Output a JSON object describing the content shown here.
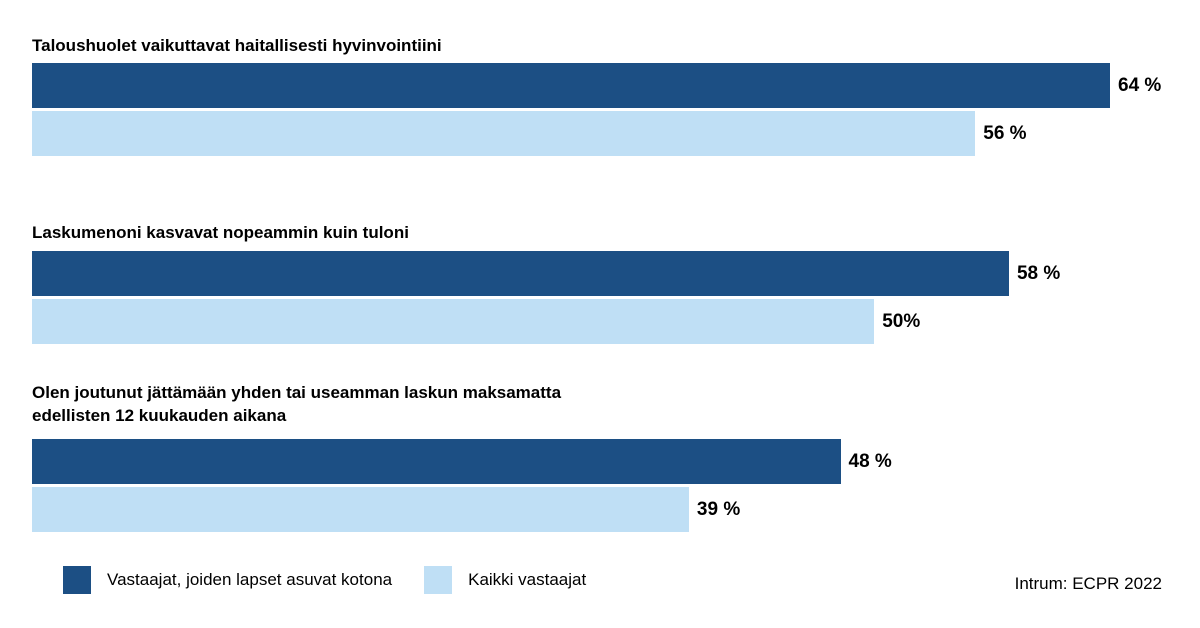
{
  "chart_data": {
    "type": "bar",
    "orientation": "horizontal",
    "categories": [
      "Taloushuolet vaikuttavat haitallisesti hyvinvointiini",
      "Laskumenoni kasvavat nopeammin kuin tuloni",
      "Olen joutunut jättämään yhden tai useamman laskun maksamatta edellisten 12 kuukauden aikana"
    ],
    "series": [
      {
        "name": "Vastaajat, joiden lapset asuvat kotona",
        "color": "#1c4f84",
        "values": [
          64,
          58,
          48
        ],
        "labels": [
          "64 %",
          "58 %",
          "48 %"
        ]
      },
      {
        "name": "Kaikki vastaajat",
        "color": "#bfdff5",
        "values": [
          56,
          50,
          39
        ],
        "labels": [
          "56 %",
          "50%",
          "39 %"
        ]
      }
    ],
    "xlim": [
      0,
      64
    ],
    "grid": false,
    "legend_position": "bottom-left"
  },
  "source": "Intrum: ECPR 2022"
}
